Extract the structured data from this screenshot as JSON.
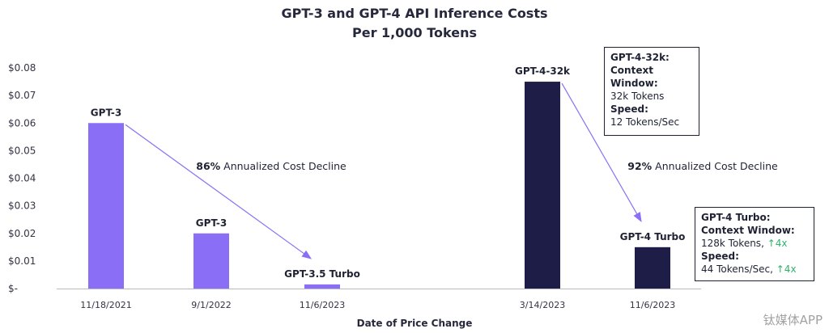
{
  "chart_data": {
    "type": "bar",
    "title": [
      "GPT-3 and GPT-4 API Inference Costs",
      "Per 1,000 Tokens"
    ],
    "xlabel": "Date of Price Change",
    "ylabel": "",
    "ylim": [
      0,
      0.08
    ],
    "yticks": [
      0,
      0.01,
      0.02,
      0.03,
      0.04,
      0.05,
      0.06,
      0.07,
      0.08
    ],
    "ytick_labels": [
      "$-",
      "$0.01",
      "$0.02",
      "$0.03",
      "$0.04",
      "$0.05",
      "$0.06",
      "$0.07",
      "$0.08"
    ],
    "grid": false,
    "bars": [
      {
        "category": "11/18/2021",
        "label": "GPT-3",
        "value": 0.06,
        "color": "#8a6ff6",
        "group": 0
      },
      {
        "category": "9/1/2022",
        "label": "GPT-3",
        "value": 0.02,
        "color": "#8a6ff6",
        "group": 0
      },
      {
        "category": "11/6/2023",
        "label": "GPT-3.5 Turbo",
        "value": 0.0015,
        "color": "#8a6ff6",
        "group": 0
      },
      {
        "category": "3/14/2023",
        "label": "GPT-4-32k",
        "value": 0.075,
        "color": "#1e1d48",
        "group": 1
      },
      {
        "category": "11/6/2023",
        "label": "GPT-4 Turbo",
        "value": 0.015,
        "color": "#1e1d48",
        "group": 1
      }
    ],
    "annotations": [
      {
        "pct": "86%",
        "text": " Annualized Cost Decline",
        "from_bar": 0,
        "to_bar": 2
      },
      {
        "pct": "92%",
        "text": " Annualized Cost Decline",
        "from_bar": 3,
        "to_bar": 4
      }
    ]
  },
  "info_boxes": {
    "gpt4_32k": {
      "title": "GPT-4-32k:",
      "context_label": "Context Window:",
      "context_value": "32k Tokens",
      "speed_label": "Speed:",
      "speed_value": "12 Tokens/Sec"
    },
    "gpt4_turbo": {
      "title": "GPT-4 Turbo:",
      "context_label": "Context Window:",
      "context_value": "128k Tokens, ",
      "context_gain": "↑4x",
      "speed_label": "Speed:",
      "speed_value": "44 Tokens/Sec, ",
      "speed_gain": "↑4x"
    }
  },
  "watermark": "钛媒体APP",
  "colors": {
    "arrow": "#8a6ff6",
    "gain": "#2fb36a"
  }
}
